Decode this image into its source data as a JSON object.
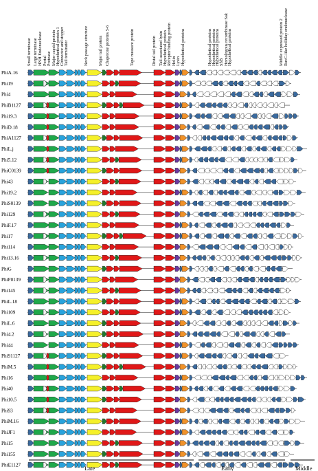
{
  "gene_labels": [
    "Small terminase",
    "Large terminase",
    "HNH Endonuclease",
    "Portal",
    "Protease",
    "Major capsid protein",
    "Hypothetical protein 1",
    "Connector and stopper",
    "Tail terminator",
    "Neck passage structure",
    "Major tail protein",
    "Chaperone proteins 5-6",
    "Tape measure protein",
    "Distal tail protein",
    "Tail associated lysin",
    "Hypothetical protein",
    "Receptor binding protein",
    "Holin",
    "Lysin",
    "Hypothetical proteins",
    "Hypothetical proteins",
    "Hypothetical proteins",
    "Hypothetical proteins",
    "SSB",
    "Homologous recombinase Sak",
    "Hypothetical proteins",
    "Middle expressed protein 2",
    "RuvC-like holliday endonuclease"
  ],
  "phages": [
    "PhiA.16",
    "Phi19",
    "Phi4",
    "PhiB1127",
    "Phi19.3",
    "PhiD.18",
    "PhiA1127",
    "PhiL.j",
    "Phi5.12",
    "PhiC0139",
    "Phi43",
    "Phi19.2",
    "PhiS0139",
    "Phi129",
    "PhiF.17",
    "Phi17",
    "Phi114",
    "Phi13.16",
    "PhiG",
    "PhiF0139",
    "Phi145",
    "PhiL.18",
    "Phi109",
    "PhiL.6",
    "Phi4.2",
    "Phi44",
    "Phi91127",
    "PhiM.5",
    "Phi16",
    "Phi40",
    "Phi10.5",
    "Phi93",
    "PhiM.16",
    "PhiJF1",
    "Phi15",
    "Phi155",
    "PhiE1127",
    "PhiM1127"
  ],
  "regions": [
    "Late",
    "Early",
    "Middle"
  ],
  "colors": {
    "terminase": "#1fa84a",
    "endonuclease": "#f0f0f0",
    "portal_capsid": "#29a3dc",
    "neck": "#f5f02a",
    "tail": "#e01818",
    "tail_small": "#1f7a2e",
    "receptor": "#6a3aa0",
    "lysis": "#f0922a",
    "hypothetical": "#3a6a9e",
    "white": "#ffffff",
    "outline": "#222222"
  }
}
